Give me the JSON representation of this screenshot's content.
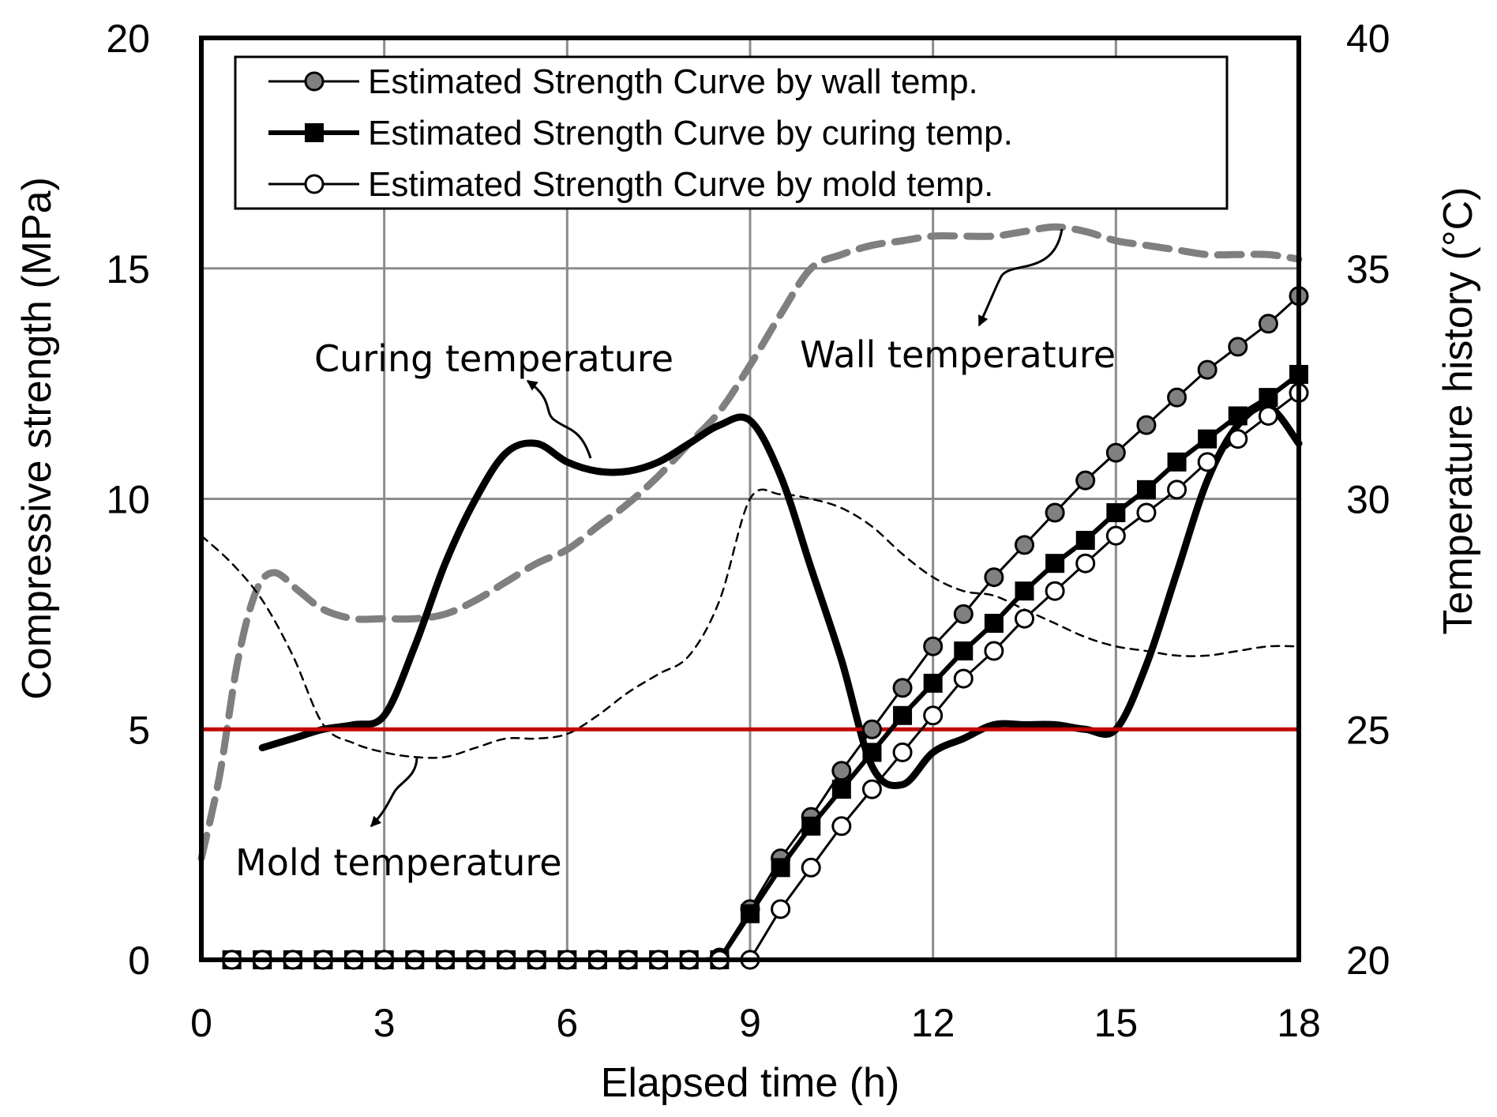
{
  "chart_data": {
    "type": "line",
    "title": "",
    "xlabel": "Elapsed time (h)",
    "ylabel": "Compressive strength (MPa)",
    "y2label": "Temperature history (°C)",
    "xlim": [
      0,
      18
    ],
    "ylim": [
      0,
      20
    ],
    "y2lim": [
      20,
      40
    ],
    "xticks": [
      "0",
      "3",
      "6",
      "9",
      "12",
      "15",
      "18"
    ],
    "yticks": [
      "0",
      "5",
      "10",
      "15",
      "20"
    ],
    "y2ticks": [
      "20",
      "25",
      "30",
      "35",
      "40"
    ],
    "grid": true,
    "legend_position": "top",
    "strength_x": [
      0.5,
      1,
      1.5,
      2,
      2.5,
      3,
      3.5,
      4,
      4.5,
      5,
      5.5,
      6,
      6.5,
      7,
      7.5,
      8,
      8.5,
      9,
      9.5,
      10,
      10.5,
      11,
      11.5,
      12,
      12.5,
      13,
      13.5,
      14,
      14.5,
      15,
      15.5,
      16,
      16.5,
      17,
      17.5,
      18
    ],
    "series": [
      {
        "name": "Estimated Strength Curve by wall temp.",
        "marker": "gray-circle",
        "color": "#808080",
        "x": [
          0.5,
          1,
          1.5,
          2,
          2.5,
          3,
          3.5,
          4,
          4.5,
          5,
          5.5,
          6,
          6.5,
          7,
          7.5,
          8,
          8.5,
          9,
          9.5,
          10,
          10.5,
          11,
          11.5,
          12,
          12.5,
          13,
          13.5,
          14,
          14.5,
          15,
          15.5,
          16,
          16.5,
          17,
          17.5,
          18
        ],
        "values": [
          0,
          0,
          0,
          0,
          0,
          0,
          0,
          0,
          0,
          0,
          0,
          0,
          0,
          0,
          0,
          0,
          0.05,
          1.1,
          2.2,
          3.1,
          4.1,
          5.0,
          5.9,
          6.8,
          7.5,
          8.3,
          9.0,
          9.7,
          10.4,
          11.0,
          11.6,
          12.2,
          12.8,
          13.3,
          13.8,
          14.4
        ]
      },
      {
        "name": "Estimated Strength Curve by curing temp.",
        "marker": "black-square",
        "color": "#000000",
        "x": [
          0.5,
          1,
          1.5,
          2,
          2.5,
          3,
          3.5,
          4,
          4.5,
          5,
          5.5,
          6,
          6.5,
          7,
          7.5,
          8,
          8.5,
          9,
          9.5,
          10,
          10.5,
          11,
          11.5,
          12,
          12.5,
          13,
          13.5,
          14,
          14.5,
          15,
          15.5,
          16,
          16.5,
          17,
          17.5,
          18
        ],
        "values": [
          0,
          0,
          0,
          0,
          0,
          0,
          0,
          0,
          0,
          0,
          0,
          0,
          0,
          0,
          0,
          0,
          0,
          1.0,
          2.0,
          2.9,
          3.7,
          4.5,
          5.3,
          6.0,
          6.7,
          7.3,
          8.0,
          8.6,
          9.1,
          9.7,
          10.2,
          10.8,
          11.3,
          11.8,
          12.2,
          12.7
        ]
      },
      {
        "name": "Estimated Strength Curve by mold temp.",
        "marker": "white-circle",
        "color": "#000000",
        "x": [
          0.5,
          1,
          1.5,
          2,
          2.5,
          3,
          3.5,
          4,
          4.5,
          5,
          5.5,
          6,
          6.5,
          7,
          7.5,
          8,
          8.5,
          9,
          9.5,
          10,
          10.5,
          11,
          11.5,
          12,
          12.5,
          13,
          13.5,
          14,
          14.5,
          15,
          15.5,
          16,
          16.5,
          17,
          17.5,
          18
        ],
        "values": [
          0,
          0,
          0,
          0,
          0,
          0,
          0,
          0,
          0,
          0,
          0,
          0,
          0,
          0,
          0,
          0,
          0,
          0,
          1.1,
          2.0,
          2.9,
          3.7,
          4.5,
          5.3,
          6.1,
          6.7,
          7.4,
          8.0,
          8.6,
          9.2,
          9.7,
          10.2,
          10.8,
          11.3,
          11.8,
          12.3
        ]
      }
    ],
    "temperature_series": [
      {
        "name": "Wall temperature",
        "style": "gray-dashed",
        "color": "#7f7f7f",
        "x": [
          0,
          0.3,
          0.6,
          0.9,
          1.2,
          1.6,
          2,
          2.5,
          3,
          3.5,
          4,
          4.5,
          5,
          5.5,
          6,
          6.5,
          7,
          7.5,
          8,
          8.5,
          9,
          9.5,
          10,
          10.5,
          11,
          11.5,
          12,
          12.5,
          13,
          13.5,
          14,
          14.5,
          15,
          15.5,
          16,
          16.5,
          17,
          17.5,
          18
        ],
        "values": [
          22.2,
          24.0,
          26.5,
          28.0,
          28.4,
          28.0,
          27.6,
          27.4,
          27.4,
          27.4,
          27.5,
          27.8,
          28.2,
          28.6,
          28.9,
          29.4,
          29.9,
          30.5,
          31.2,
          31.9,
          32.9,
          34.0,
          35.0,
          35.3,
          35.5,
          35.6,
          35.7,
          35.7,
          35.7,
          35.8,
          35.9,
          35.8,
          35.6,
          35.5,
          35.4,
          35.3,
          35.3,
          35.3,
          35.2
        ]
      },
      {
        "name": "Curing temperature",
        "style": "black-thick",
        "color": "#000000",
        "x": [
          1,
          1.5,
          2,
          2.5,
          3,
          3.5,
          4,
          4.5,
          5,
          5.5,
          6,
          6.5,
          7,
          7.5,
          8,
          8.5,
          9,
          9.5,
          10,
          10.5,
          11,
          11.5,
          12,
          12.5,
          13,
          13.5,
          14,
          14.5,
          15,
          15.5,
          16,
          16.5,
          17,
          17.5,
          18
        ],
        "values": [
          24.6,
          24.8,
          25.0,
          25.1,
          25.3,
          26.8,
          28.6,
          30.0,
          31.0,
          31.2,
          30.8,
          30.6,
          30.6,
          30.8,
          31.2,
          31.6,
          31.7,
          30.5,
          28.5,
          26.5,
          24.2,
          23.8,
          24.5,
          24.8,
          25.1,
          25.1,
          25.1,
          25.0,
          25.0,
          26.4,
          28.4,
          30.4,
          31.6,
          32.0,
          31.2
        ]
      },
      {
        "name": "Mold temperature",
        "style": "black-thin-dashed",
        "color": "#000000",
        "x": [
          0,
          0.5,
          1,
          1.5,
          2,
          2.5,
          3,
          3.5,
          4,
          4.5,
          5,
          5.5,
          6,
          6.5,
          7,
          7.5,
          8,
          8.5,
          9,
          9.5,
          10,
          10.5,
          11,
          11.5,
          12,
          12.5,
          13,
          13.5,
          14,
          14.5,
          15,
          15.5,
          16,
          16.5,
          17,
          17.5,
          18
        ],
        "values": [
          29.2,
          28.6,
          27.8,
          26.6,
          25.1,
          24.7,
          24.5,
          24.4,
          24.4,
          24.6,
          24.8,
          24.8,
          24.9,
          25.3,
          25.8,
          26.2,
          26.6,
          27.8,
          30.0,
          30.1,
          30.0,
          29.8,
          29.4,
          28.8,
          28.3,
          28.0,
          27.9,
          27.6,
          27.3,
          27.0,
          26.8,
          26.7,
          26.6,
          26.6,
          26.7,
          26.8,
          26.8
        ]
      }
    ],
    "reference_line": {
      "y": 5,
      "color": "#c00000"
    },
    "annotations": [
      {
        "text": "Curing temperature"
      },
      {
        "text": "Wall temperature"
      },
      {
        "text": "Mold temperature"
      }
    ]
  }
}
